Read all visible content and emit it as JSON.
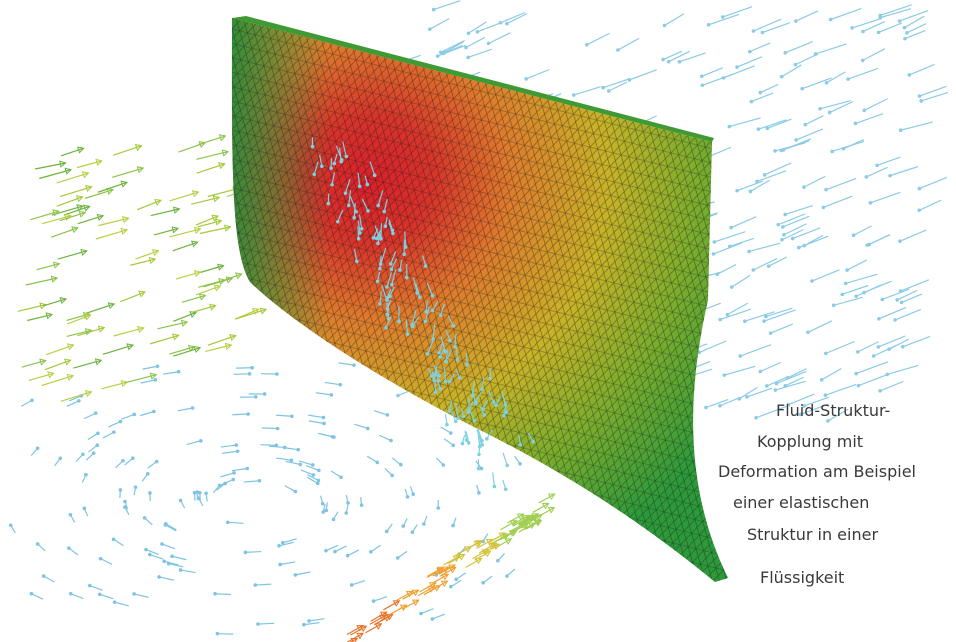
{
  "caption": {
    "lines": [
      "Fluid-Struktur-",
      "Kopplung mit",
      "Deformation am Beispiel",
      "einer elastischen",
      "Struktur in einer",
      "Flüssigkeit"
    ]
  }
}
